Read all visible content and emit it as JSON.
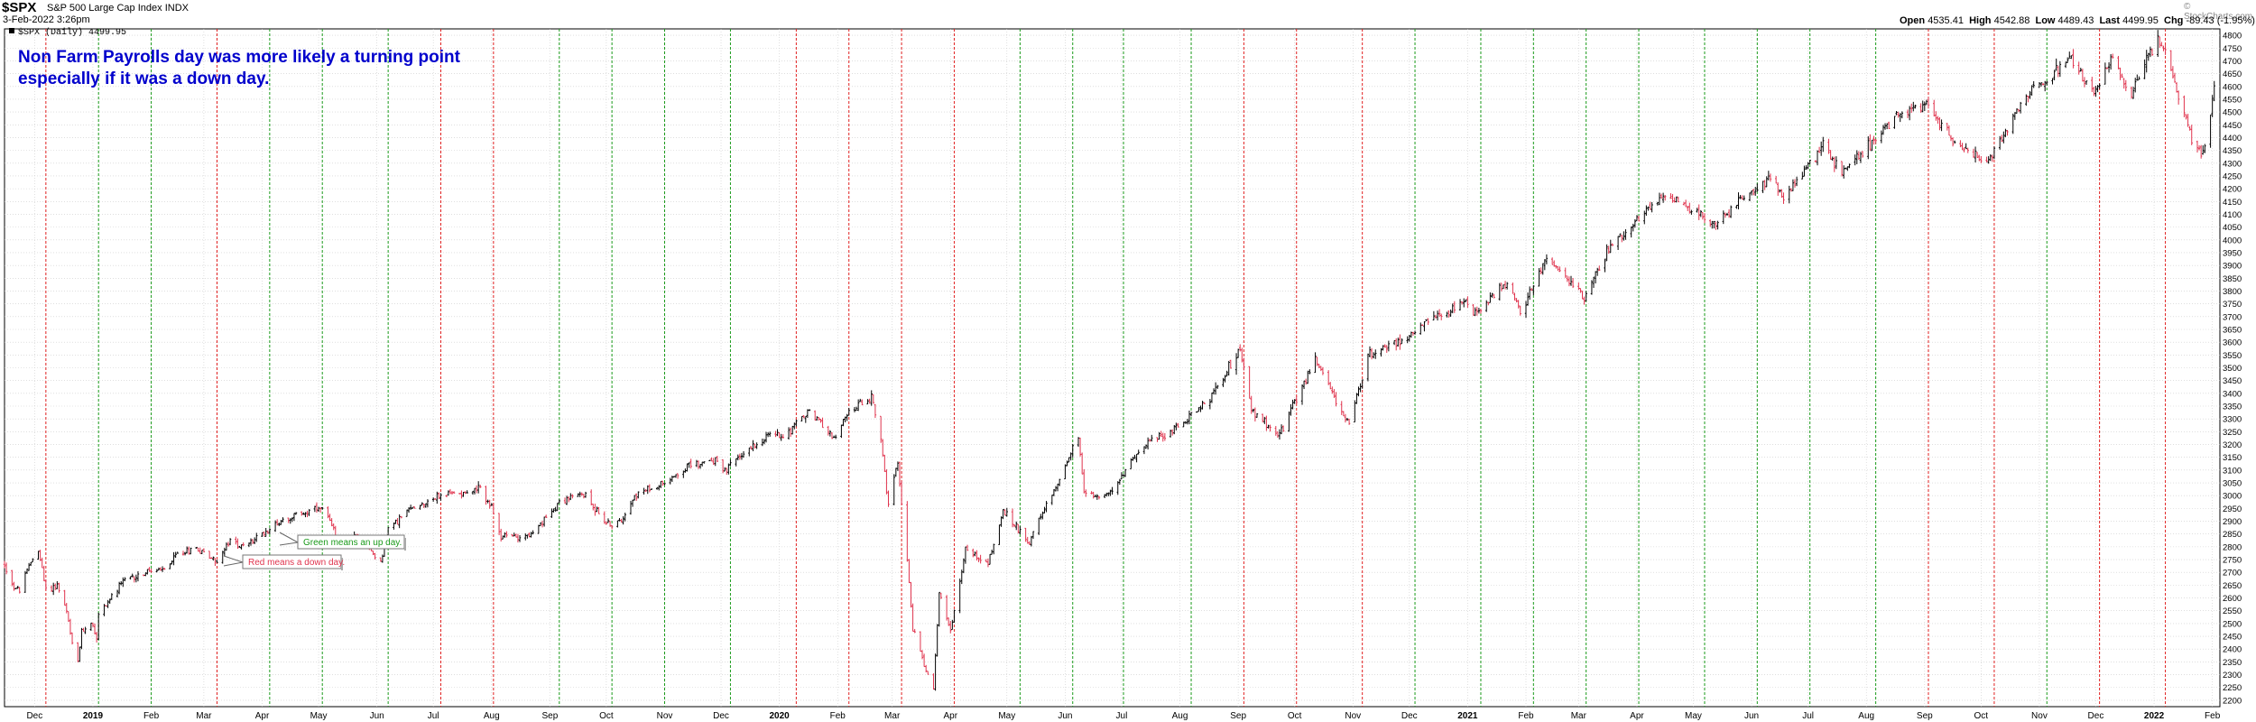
{
  "header": {
    "symbol": "$SPX",
    "index_name": "S&P 500 Large Cap Index",
    "exchange": "INDX",
    "date": "3-Feb-2022 3:26pm",
    "credit": "© StockCharts.com",
    "ohlc": {
      "open_label": "Open",
      "open": "4535.41",
      "high_label": "High",
      "high": "4542.88",
      "low_label": "Low",
      "low": "4489.43",
      "last_label": "Last",
      "last": "4499.95",
      "chg_label": "Chg",
      "chg": "-89.43 (-1.95%)"
    },
    "series_legend": "$SPX (Daily) 4499.95"
  },
  "annotations": {
    "headline_line1": "Non Farm Payrolls day was more likely a turning point",
    "headline_line2": "especially if it was a down day.",
    "green_note": "Green means an up day.",
    "red_note": "Red means a down day."
  },
  "colors": {
    "up": "#000000",
    "down": "#e0334d",
    "nfp_up_line": "#1a9a1a",
    "nfp_down_line": "#e02020",
    "headline": "#0000cc",
    "grid": "#cccccc"
  },
  "chart_data": {
    "type": "line",
    "style": "ohlc-bars",
    "series": [
      {
        "name": "$SPX (Daily) 4499.95"
      }
    ],
    "y_ticks": [
      2200,
      2250,
      2300,
      2350,
      2400,
      2450,
      2500,
      2550,
      2600,
      2650,
      2700,
      2750,
      2800,
      2850,
      2900,
      2950,
      3000,
      3050,
      3100,
      3150,
      3200,
      3250,
      3300,
      3350,
      3400,
      3450,
      3500,
      3550,
      3600,
      3650,
      3700,
      3750,
      3800,
      3850,
      3900,
      3950,
      4000,
      4050,
      4100,
      4150,
      4200,
      4250,
      4300,
      4350,
      4400,
      4450,
      4500,
      4550,
      4600,
      4650,
      4700,
      4750,
      4800
    ],
    "ylim": [
      2175,
      4825
    ],
    "xlim": [
      "2018-11-15",
      "2022-02-05"
    ],
    "x_ticks": [
      {
        "date": "2018-12-01",
        "label": "Dec",
        "bold": false
      },
      {
        "date": "2019-01-01",
        "label": "2019",
        "bold": true
      },
      {
        "date": "2019-02-01",
        "label": "Feb",
        "bold": false
      },
      {
        "date": "2019-03-01",
        "label": "Mar",
        "bold": false
      },
      {
        "date": "2019-04-01",
        "label": "Apr",
        "bold": false
      },
      {
        "date": "2019-05-01",
        "label": "May",
        "bold": false
      },
      {
        "date": "2019-06-01",
        "label": "Jun",
        "bold": false
      },
      {
        "date": "2019-07-01",
        "label": "Jul",
        "bold": false
      },
      {
        "date": "2019-08-01",
        "label": "Aug",
        "bold": false
      },
      {
        "date": "2019-09-01",
        "label": "Sep",
        "bold": false
      },
      {
        "date": "2019-10-01",
        "label": "Oct",
        "bold": false
      },
      {
        "date": "2019-11-01",
        "label": "Nov",
        "bold": false
      },
      {
        "date": "2019-12-01",
        "label": "Dec",
        "bold": false
      },
      {
        "date": "2020-01-01",
        "label": "2020",
        "bold": true
      },
      {
        "date": "2020-02-01",
        "label": "Feb",
        "bold": false
      },
      {
        "date": "2020-03-01",
        "label": "Mar",
        "bold": false
      },
      {
        "date": "2020-04-01",
        "label": "Apr",
        "bold": false
      },
      {
        "date": "2020-05-01",
        "label": "May",
        "bold": false
      },
      {
        "date": "2020-06-01",
        "label": "Jun",
        "bold": false
      },
      {
        "date": "2020-07-01",
        "label": "Jul",
        "bold": false
      },
      {
        "date": "2020-08-01",
        "label": "Aug",
        "bold": false
      },
      {
        "date": "2020-09-01",
        "label": "Sep",
        "bold": false
      },
      {
        "date": "2020-10-01",
        "label": "Oct",
        "bold": false
      },
      {
        "date": "2020-11-01",
        "label": "Nov",
        "bold": false
      },
      {
        "date": "2020-12-01",
        "label": "Dec",
        "bold": false
      },
      {
        "date": "2021-01-01",
        "label": "2021",
        "bold": true
      },
      {
        "date": "2021-02-01",
        "label": "Feb",
        "bold": false
      },
      {
        "date": "2021-03-01",
        "label": "Mar",
        "bold": false
      },
      {
        "date": "2021-04-01",
        "label": "Apr",
        "bold": false
      },
      {
        "date": "2021-05-01",
        "label": "May",
        "bold": false
      },
      {
        "date": "2021-06-01",
        "label": "Jun",
        "bold": false
      },
      {
        "date": "2021-07-01",
        "label": "Jul",
        "bold": false
      },
      {
        "date": "2021-08-01",
        "label": "Aug",
        "bold": false
      },
      {
        "date": "2021-09-01",
        "label": "Sep",
        "bold": false
      },
      {
        "date": "2021-10-01",
        "label": "Oct",
        "bold": false
      },
      {
        "date": "2021-11-01",
        "label": "Nov",
        "bold": false
      },
      {
        "date": "2021-12-01",
        "label": "Dec",
        "bold": false
      },
      {
        "date": "2022-01-01",
        "label": "2022",
        "bold": true
      },
      {
        "date": "2022-02-01",
        "label": "Feb",
        "bold": false
      }
    ],
    "nfp_days": [
      {
        "date": "2018-12-07",
        "day": "down"
      },
      {
        "date": "2019-01-04",
        "day": "up"
      },
      {
        "date": "2019-02-01",
        "day": "up"
      },
      {
        "date": "2019-03-08",
        "day": "down"
      },
      {
        "date": "2019-04-05",
        "day": "up"
      },
      {
        "date": "2019-05-03",
        "day": "up"
      },
      {
        "date": "2019-06-07",
        "day": "up"
      },
      {
        "date": "2019-07-05",
        "day": "down"
      },
      {
        "date": "2019-08-02",
        "day": "down"
      },
      {
        "date": "2019-09-06",
        "day": "up"
      },
      {
        "date": "2019-10-04",
        "day": "up"
      },
      {
        "date": "2019-11-01",
        "day": "up"
      },
      {
        "date": "2019-12-06",
        "day": "up"
      },
      {
        "date": "2020-01-10",
        "day": "down"
      },
      {
        "date": "2020-02-07",
        "day": "down"
      },
      {
        "date": "2020-03-06",
        "day": "down"
      },
      {
        "date": "2020-04-03",
        "day": "down"
      },
      {
        "date": "2020-05-08",
        "day": "up"
      },
      {
        "date": "2020-06-05",
        "day": "up"
      },
      {
        "date": "2020-07-02",
        "day": "up"
      },
      {
        "date": "2020-08-07",
        "day": "up"
      },
      {
        "date": "2020-09-04",
        "day": "down"
      },
      {
        "date": "2020-10-02",
        "day": "down"
      },
      {
        "date": "2020-11-06",
        "day": "down"
      },
      {
        "date": "2020-12-04",
        "day": "up"
      },
      {
        "date": "2021-01-08",
        "day": "up"
      },
      {
        "date": "2021-02-05",
        "day": "up"
      },
      {
        "date": "2021-03-05",
        "day": "up"
      },
      {
        "date": "2021-04-02",
        "day": "up"
      },
      {
        "date": "2021-05-07",
        "day": "up"
      },
      {
        "date": "2021-06-04",
        "day": "up"
      },
      {
        "date": "2021-07-02",
        "day": "up"
      },
      {
        "date": "2021-08-06",
        "day": "up"
      },
      {
        "date": "2021-09-03",
        "day": "down"
      },
      {
        "date": "2021-10-08",
        "day": "down"
      },
      {
        "date": "2021-11-05",
        "day": "up"
      },
      {
        "date": "2021-12-03",
        "day": "down"
      },
      {
        "date": "2022-01-07",
        "day": "down"
      }
    ],
    "close_path": [
      [
        "2018-11-15",
        2730
      ],
      [
        "2018-11-20",
        2640
      ],
      [
        "2018-11-23",
        2632
      ],
      [
        "2018-11-29",
        2740
      ],
      [
        "2018-12-03",
        2790
      ],
      [
        "2018-12-07",
        2630
      ],
      [
        "2018-12-13",
        2650
      ],
      [
        "2018-12-18",
        2545
      ],
      [
        "2018-12-21",
        2415
      ],
      [
        "2018-12-24",
        2351
      ],
      [
        "2018-12-26",
        2467
      ],
      [
        "2018-12-31",
        2507
      ],
      [
        "2019-01-03",
        2448
      ],
      [
        "2019-01-04",
        2532
      ],
      [
        "2019-01-10",
        2596
      ],
      [
        "2019-01-18",
        2670
      ],
      [
        "2019-01-31",
        2704
      ],
      [
        "2019-02-08",
        2708
      ],
      [
        "2019-02-15",
        2775
      ],
      [
        "2019-02-25",
        2796
      ],
      [
        "2019-03-08",
        2743
      ],
      [
        "2019-03-15",
        2822
      ],
      [
        "2019-03-22",
        2800
      ],
      [
        "2019-03-29",
        2834
      ],
      [
        "2019-04-12",
        2907
      ],
      [
        "2019-04-23",
        2933
      ],
      [
        "2019-04-30",
        2945
      ],
      [
        "2019-05-03",
        2945
      ],
      [
        "2019-05-13",
        2811
      ],
      [
        "2019-05-20",
        2840
      ],
      [
        "2019-06-03",
        2744
      ],
      [
        "2019-06-07",
        2873
      ],
      [
        "2019-06-20",
        2954
      ],
      [
        "2019-07-03",
        2996
      ],
      [
        "2019-07-15",
        3014
      ],
      [
        "2019-07-26",
        3025
      ],
      [
        "2019-08-01",
        2953
      ],
      [
        "2019-08-05",
        2844
      ],
      [
        "2019-08-14",
        2840
      ],
      [
        "2019-08-23",
        2847
      ],
      [
        "2019-09-06",
        2978
      ],
      [
        "2019-09-19",
        3006
      ],
      [
        "2019-10-02",
        2887
      ],
      [
        "2019-10-08",
        2893
      ],
      [
        "2019-10-15",
        2995
      ],
      [
        "2019-10-28",
        3039
      ],
      [
        "2019-11-15",
        3120
      ],
      [
        "2019-11-29",
        3141
      ],
      [
        "2019-12-03",
        3093
      ],
      [
        "2019-12-13",
        3169
      ],
      [
        "2019-12-27",
        3240
      ],
      [
        "2020-01-03",
        3234
      ],
      [
        "2020-01-17",
        3330
      ],
      [
        "2020-01-31",
        3225
      ],
      [
        "2020-02-07",
        3328
      ],
      [
        "2020-02-19",
        3386
      ],
      [
        "2020-02-24",
        3226
      ],
      [
        "2020-02-28",
        2954
      ],
      [
        "2020-03-04",
        3130
      ],
      [
        "2020-03-09",
        2746
      ],
      [
        "2020-03-12",
        2480
      ],
      [
        "2020-03-16",
        2386
      ],
      [
        "2020-03-23",
        2237
      ],
      [
        "2020-03-26",
        2630
      ],
      [
        "2020-04-01",
        2470
      ],
      [
        "2020-04-09",
        2790
      ],
      [
        "2020-04-21",
        2736
      ],
      [
        "2020-04-29",
        2939
      ],
      [
        "2020-05-13",
        2820
      ],
      [
        "2020-05-27",
        3036
      ],
      [
        "2020-06-08",
        3232
      ],
      [
        "2020-06-11",
        3002
      ],
      [
        "2020-06-26",
        3009
      ],
      [
        "2020-07-10",
        3185
      ],
      [
        "2020-07-31",
        3271
      ],
      [
        "2020-08-18",
        3389
      ],
      [
        "2020-09-02",
        3580
      ],
      [
        "2020-09-08",
        3331
      ],
      [
        "2020-09-23",
        3237
      ],
      [
        "2020-10-12",
        3534
      ],
      [
        "2020-10-30",
        3270
      ],
      [
        "2020-11-09",
        3550
      ],
      [
        "2020-11-30",
        3622
      ],
      [
        "2020-12-18",
        3709
      ],
      [
        "2020-12-31",
        3756
      ],
      [
        "2021-01-04",
        3700
      ],
      [
        "2021-01-22",
        3841
      ],
      [
        "2021-01-29",
        3714
      ],
      [
        "2021-02-12",
        3934
      ],
      [
        "2021-03-04",
        3768
      ],
      [
        "2021-03-17",
        3974
      ],
      [
        "2021-04-16",
        4185
      ],
      [
        "2021-05-12",
        4063
      ],
      [
        "2021-06-11",
        4247
      ],
      [
        "2021-06-18",
        4166
      ],
      [
        "2021-07-09",
        4369
      ],
      [
        "2021-07-19",
        4258
      ],
      [
        "2021-08-16",
        4479
      ],
      [
        "2021-09-02",
        4537
      ],
      [
        "2021-09-20",
        4358
      ],
      [
        "2021-10-04",
        4300
      ],
      [
        "2021-10-25",
        4566
      ],
      [
        "2021-11-18",
        4704
      ],
      [
        "2021-11-30",
        4567
      ],
      [
        "2021-12-10",
        4712
      ],
      [
        "2021-12-20",
        4568
      ],
      [
        "2022-01-03",
        4797
      ],
      [
        "2022-01-10",
        4670
      ],
      [
        "2022-01-21",
        4398
      ],
      [
        "2022-01-27",
        4326
      ],
      [
        "2022-02-02",
        4589
      ],
      [
        "2022-02-03",
        4500
      ]
    ]
  }
}
